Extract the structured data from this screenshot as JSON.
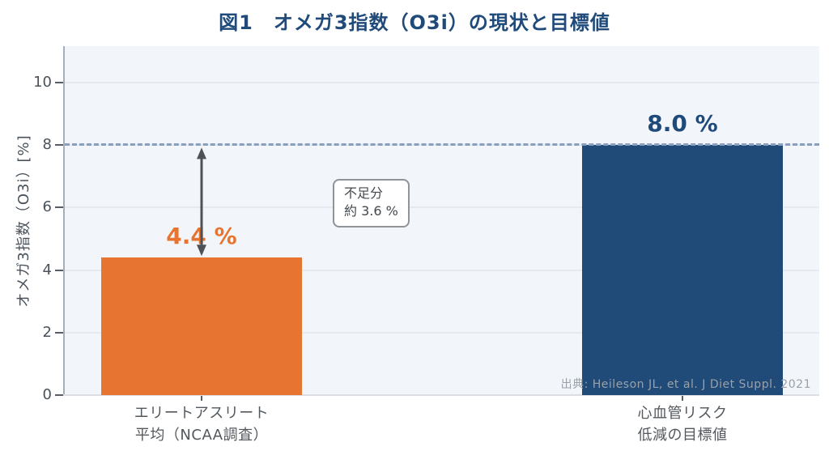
{
  "figure_label": "図1",
  "chart_data": {
    "type": "bar",
    "title": "図1　オメガ3指数（O3i）の現状と目標値",
    "ylabel": "オメガ3指数（O3i）[%]",
    "xlabel": "",
    "categories": [
      [
        "エリートアスリート",
        "平均（NCAA調査）"
      ],
      [
        "心血管リスク",
        "低減の目標値"
      ]
    ],
    "values": [
      4.4,
      8.0
    ],
    "bar_labels": [
      "4.4 %",
      "8.0 %"
    ],
    "bar_colors": [
      "#E87431",
      "#204A78"
    ],
    "bar_label_colors": [
      "#E87431",
      "#1F4A7A"
    ],
    "yticks": [
      0,
      2,
      4,
      6,
      8,
      10
    ],
    "ylim": [
      0,
      11.17
    ],
    "grid": true,
    "legend": "none",
    "target_line": {
      "value": 8.0,
      "style": "dashed",
      "color": "#8A9FC0"
    },
    "gap_annotation": {
      "lines": [
        "不足分",
        "約 3.6 %"
      ],
      "from_value": 4.4,
      "to_value": 8.0,
      "arrow_color": "#4D5257"
    },
    "source": "出典: Heileson JL, et al. J Diet Suppl. 2021"
  },
  "colors": {
    "title": "#1F4A7A",
    "plot_background": "#F2F6FA",
    "gridline": "#E4EAF0",
    "axis_text": "#4A525B"
  }
}
